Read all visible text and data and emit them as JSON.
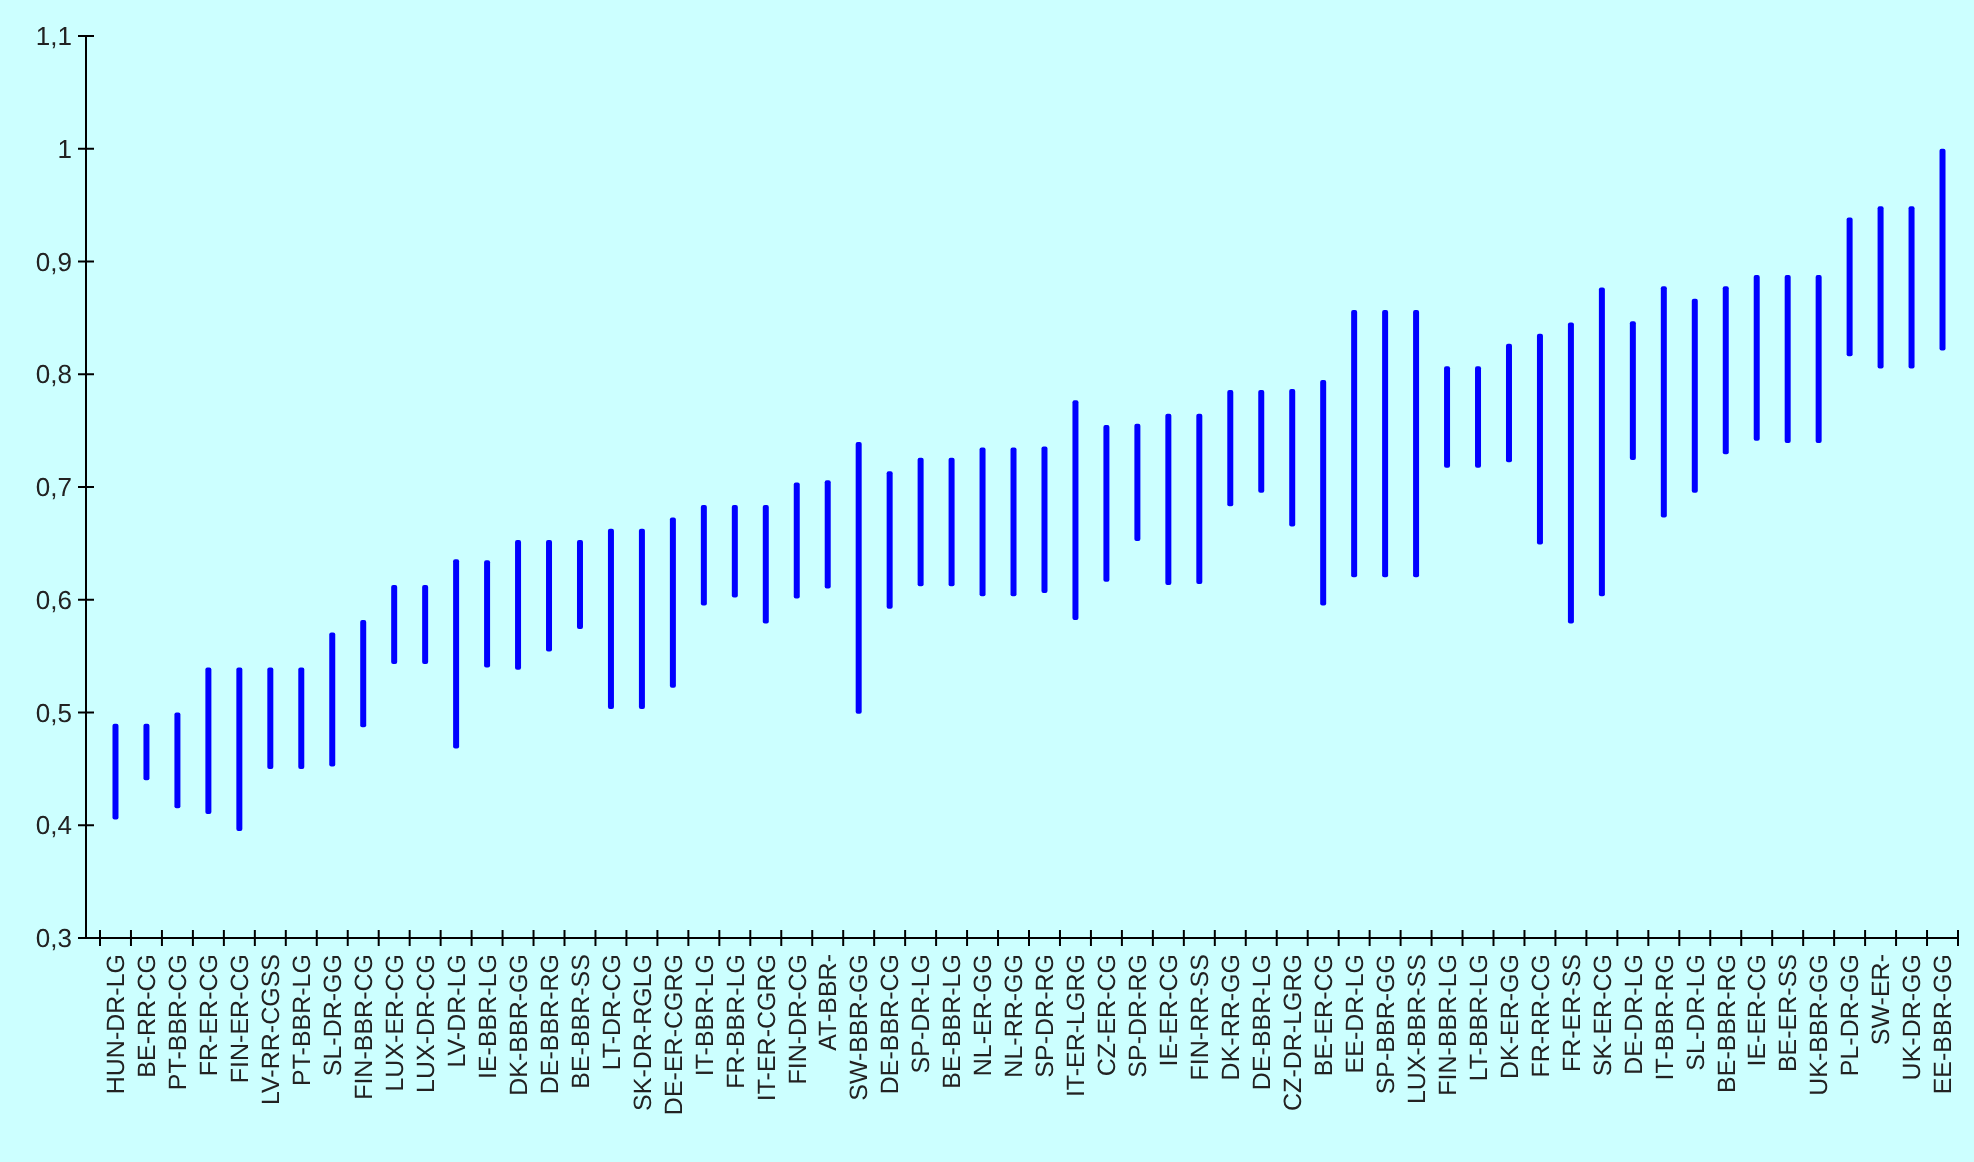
{
  "chart_data": {
    "type": "bar",
    "categories": [
      "HUN-DR-LG",
      "BE-RR-CG",
      "PT-BBR-CG",
      "FR-ER-CG",
      "FIN-ER-CG",
      "LV-RR-CGSS",
      "PT-BBR-LG",
      "SL-DR-GG",
      "FIN-BBR-CG",
      "LUX-ER-CG",
      "LUX-DR-CG",
      "LV-DR-LG",
      "IE-BBR-LG",
      "DK-BBR-GG",
      "DE-BBR-RG",
      "BE-BBR-SS",
      "LT-DR-CG",
      "SK-DR-RGLG",
      "DE-ER-CGRG",
      "IT-BBR-LG",
      "FR-BBR-LG",
      "IT-ER-CGRG",
      "FIN-DR-CG",
      "AT-BBR-",
      "SW-BBR-GG",
      "DE-BBR-CG",
      "SP-DR-LG",
      "BE-BBR-LG",
      "NL-ER-GG",
      "NL-RR-GG",
      "SP-DR-RG",
      "IT-ER-LGRG",
      "CZ-ER-CG",
      "SP-DR-RG",
      "IE-ER-CG",
      "FIN-RR-SS",
      "DK-RR-GG",
      "DE-BBR-LG",
      "CZ-DR-LGRG",
      "BE-ER-CG",
      "EE-DR-LG",
      "SP-BBR-GG",
      "LUX-BBR-SS",
      "FIN-BBR-LG",
      "LT-BBR-LG",
      "DK-ER-GG",
      "FR-RR-CG",
      "FR-ER-SS",
      "SK-ER-CG",
      "DE-DR-LG",
      "IT-BBR-RG",
      "SL-DR-LG",
      "BE-BBR-RG",
      "IE-ER-CG",
      "BE-ER-SS",
      "UK-BBR-GG",
      "PL-DR-GG",
      "SW-ER-",
      "UK-DR-GG",
      "EE-BBR-GG"
    ],
    "base": [
      0.405,
      0.44,
      0.415,
      0.41,
      0.395,
      0.45,
      0.45,
      0.452,
      0.487,
      0.543,
      0.543,
      0.468,
      0.54,
      0.538,
      0.554,
      0.574,
      0.503,
      0.503,
      0.522,
      0.595,
      0.602,
      0.579,
      0.601,
      0.61,
      0.499,
      0.592,
      0.612,
      0.612,
      0.603,
      0.603,
      0.606,
      0.582,
      0.616,
      0.652,
      0.613,
      0.614,
      0.683,
      0.695,
      0.665,
      0.595,
      0.62,
      0.62,
      0.62,
      0.717,
      0.717,
      0.722,
      0.649,
      0.579,
      0.603,
      0.724,
      0.673,
      0.695,
      0.729,
      0.741,
      0.739,
      0.739,
      0.816,
      0.805,
      0.805,
      0.821
    ],
    "values": [
      0.085,
      0.05,
      0.085,
      0.13,
      0.145,
      0.09,
      0.09,
      0.119,
      0.095,
      0.07,
      0.07,
      0.168,
      0.095,
      0.115,
      0.099,
      0.079,
      0.16,
      0.16,
      0.151,
      0.089,
      0.082,
      0.105,
      0.103,
      0.096,
      0.241,
      0.122,
      0.114,
      0.114,
      0.132,
      0.132,
      0.13,
      0.195,
      0.139,
      0.104,
      0.152,
      0.151,
      0.103,
      0.091,
      0.122,
      0.2,
      0.237,
      0.237,
      0.237,
      0.09,
      0.09,
      0.105,
      0.187,
      0.267,
      0.274,
      0.123,
      0.205,
      0.172,
      0.149,
      0.147,
      0.149,
      0.149,
      0.123,
      0.144,
      0.144,
      0.179
    ],
    "color": "#0000ff",
    "ylim": [
      0.3,
      1.1
    ],
    "yticks": [
      {
        "value": 0.3,
        "label": "0,3"
      },
      {
        "value": 0.4,
        "label": "0,4"
      },
      {
        "value": 0.5,
        "label": "0,5"
      },
      {
        "value": 0.6,
        "label": "0,6"
      },
      {
        "value": 0.7,
        "label": "0,7"
      },
      {
        "value": 0.8,
        "label": "0,8"
      },
      {
        "value": 0.9,
        "label": "0,9"
      },
      {
        "value": 1,
        "label": "1"
      },
      {
        "value": 1.1,
        "label": "1,1"
      }
    ],
    "grid": false
  }
}
